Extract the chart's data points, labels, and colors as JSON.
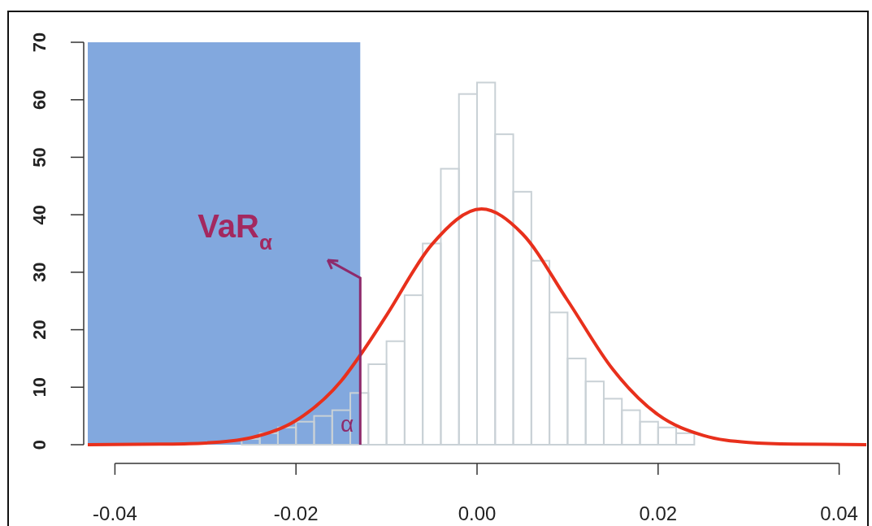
{
  "chart_data": {
    "type": "histogram",
    "bins": [
      -0.026,
      -0.024,
      -0.022,
      -0.02,
      -0.018,
      -0.016,
      -0.014,
      -0.012,
      -0.01,
      -0.008,
      -0.006,
      -0.004,
      -0.002,
      0,
      0.002,
      0.004,
      0.006,
      0.008,
      0.01,
      0.012,
      0.014,
      0.016,
      0.018,
      0.02,
      0.022,
      0.024
    ],
    "series": [
      {
        "color": "#c9d1d6",
        "values": [
          1,
          2,
          3,
          4,
          5,
          6,
          9,
          14,
          18,
          26,
          35,
          48,
          61,
          63,
          54,
          44,
          32,
          23,
          15,
          11,
          8,
          6,
          4,
          3,
          2
        ]
      },
      {
        "type": "line",
        "color": "#e8301c",
        "x": [
          -0.043,
          -0.035,
          -0.03,
          -0.025,
          -0.02,
          -0.015,
          -0.0125,
          -0.01,
          -0.005,
          0.0005,
          0.005,
          0.01,
          0.015,
          0.02,
          0.025,
          0.03,
          0.035,
          0.043
        ],
        "values": [
          0,
          0.1,
          0.3,
          1.2,
          4.2,
          11.1,
          16.5,
          22.5,
          34.8,
          41,
          36.7,
          25.1,
          13.1,
          5.2,
          1.6,
          0.4,
          0.1,
          0
        ]
      }
    ],
    "xlim": [
      -0.043,
      0.043
    ],
    "ylim": [
      0,
      70
    ],
    "xticks": [
      -0.04,
      -0.02,
      {
        "value": 0,
        "label": "0.00"
      },
      0.02,
      0.04
    ],
    "yticks": [
      0,
      10,
      20,
      30,
      40,
      50,
      60,
      70
    ],
    "bands": [
      {
        "axis": "x",
        "from": -0.043,
        "to": -0.0129,
        "color": "#7ba3dc"
      }
    ],
    "annotations": [
      {
        "text": "VaR$_{α}$",
        "x": -0.0129,
        "y": 29
      },
      "α"
    ]
  }
}
